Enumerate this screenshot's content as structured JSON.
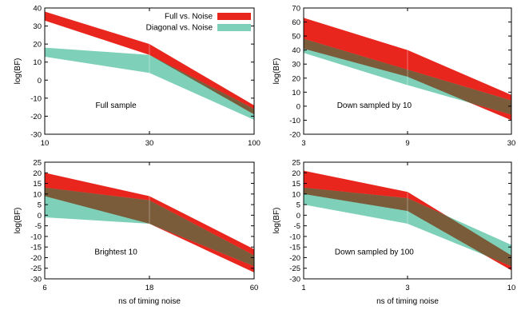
{
  "chart_data": [
    {
      "type": "area",
      "annotation": "Full sample",
      "ylabel": "log(BF)",
      "xlabel": "",
      "x": [
        10,
        30,
        100
      ],
      "xticks": [
        "10",
        "30",
        "100"
      ],
      "ylim": [
        -30,
        40
      ],
      "yticks": [
        -30,
        -20,
        -10,
        0,
        10,
        20,
        30,
        40
      ],
      "legend": "top-right",
      "series": [
        {
          "name": "Full vs. Noise",
          "color": "#e8261e",
          "lower": [
            33,
            14,
            -19
          ],
          "upper": [
            38,
            20,
            -14
          ]
        },
        {
          "name": "Diagonal vs. Noise",
          "color": "#7fd0b8",
          "lower": [
            13,
            4,
            -22
          ],
          "upper": [
            18,
            14,
            -16
          ]
        }
      ]
    },
    {
      "type": "area",
      "annotation": "Down sampled by 10",
      "ylabel": "log(BF)",
      "xlabel": "",
      "x": [
        3,
        9,
        30
      ],
      "xticks": [
        "3",
        "9",
        "30"
      ],
      "ylim": [
        -20,
        70
      ],
      "yticks": [
        -20,
        -10,
        0,
        10,
        20,
        30,
        40,
        50,
        60,
        70
      ],
      "series": [
        {
          "name": "Full vs. Noise",
          "color": "#e8261e",
          "lower": [
            41,
            21,
            -10
          ],
          "upper": [
            63,
            40,
            8
          ]
        },
        {
          "name": "Diagonal vs. Noise",
          "color": "#7fd0b8",
          "lower": [
            38,
            15,
            -6
          ],
          "upper": [
            48,
            26,
            4
          ]
        }
      ]
    },
    {
      "type": "area",
      "annotation": "Brightest 10",
      "ylabel": "log(BF)",
      "xlabel": "ns of timing noise",
      "x": [
        6,
        18,
        60
      ],
      "xticks": [
        "6",
        "18",
        "60"
      ],
      "ylim": [
        -30,
        25
      ],
      "yticks": [
        -30,
        -25,
        -20,
        -15,
        -10,
        -5,
        0,
        5,
        10,
        15,
        20,
        25
      ],
      "series": [
        {
          "name": "Full vs. Noise",
          "color": "#e8261e",
          "lower": [
            9,
            -4,
            -27
          ],
          "upper": [
            20,
            9,
            -16
          ]
        },
        {
          "name": "Diagonal vs. Noise",
          "color": "#7fd0b8",
          "lower": [
            -1,
            -4,
            -24
          ],
          "upper": [
            13,
            7,
            -19
          ]
        }
      ]
    },
    {
      "type": "area",
      "annotation": "Down sampled by 100",
      "ylabel": "log(BF)",
      "xlabel": "ns of timing noise",
      "x": [
        1,
        3,
        10
      ],
      "xticks": [
        "1",
        "3",
        "10"
      ],
      "ylim": [
        -30,
        25
      ],
      "yticks": [
        -30,
        -25,
        -20,
        -15,
        -10,
        -5,
        0,
        5,
        10,
        15,
        20,
        25
      ],
      "series": [
        {
          "name": "Full vs. Noise",
          "color": "#e8261e",
          "lower": [
            10,
            2,
            -26
          ],
          "upper": [
            21,
            11,
            -19
          ]
        },
        {
          "name": "Diagonal vs. Noise",
          "color": "#7fd0b8",
          "lower": [
            5,
            -4,
            -24
          ],
          "upper": [
            13,
            8,
            -14
          ]
        }
      ]
    }
  ]
}
